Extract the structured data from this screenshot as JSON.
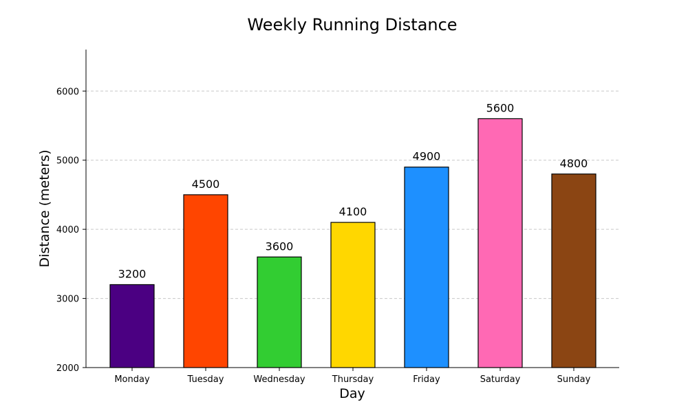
{
  "chart_data": {
    "type": "bar",
    "title": "Weekly Running Distance",
    "xlabel": "Day",
    "ylabel": "Distance (meters)",
    "categories": [
      "Monday",
      "Tuesday",
      "Wednesday",
      "Thursday",
      "Friday",
      "Saturday",
      "Sunday"
    ],
    "values": [
      3200,
      4500,
      3600,
      4100,
      4900,
      5600,
      4800
    ],
    "colors": [
      "#4B0082",
      "#FF4500",
      "#32CD32",
      "#FFD700",
      "#1E90FF",
      "#FF69B4",
      "#8B4513"
    ],
    "ylim": [
      2000,
      6600
    ],
    "yticks": [
      2000,
      3000,
      4000,
      5000,
      6000
    ],
    "grid": "y-dashed"
  }
}
